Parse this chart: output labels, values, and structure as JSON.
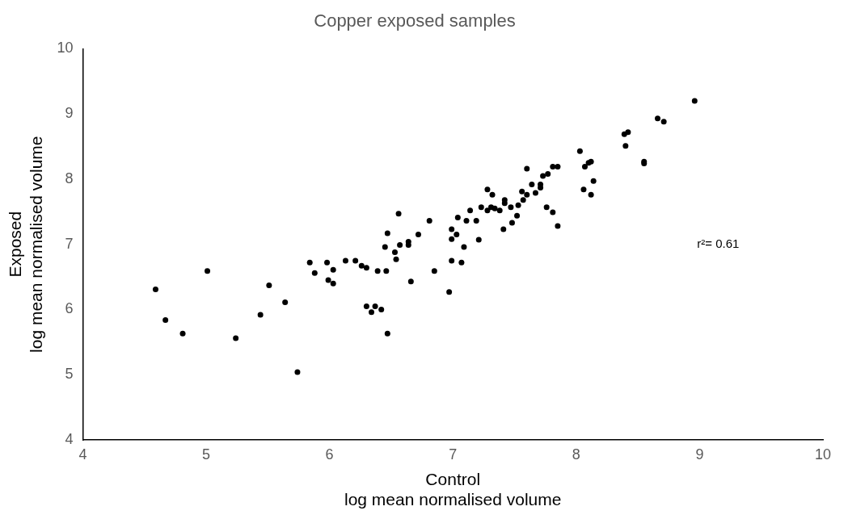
{
  "chart_data": {
    "type": "scatter",
    "title": "Copper exposed samples",
    "xlabel": "Control\nlog mean normalised volume",
    "ylabel": "Exposed\nlog mean normalised volume",
    "annotations": [
      "r²= 0.61"
    ],
    "x": [
      4.59,
      4.67,
      4.81,
      5.01,
      5.24,
      5.44,
      5.51,
      5.64,
      5.74,
      5.84,
      5.88,
      5.98,
      6.03,
      5.99,
      6.03,
      6.13,
      6.21,
      6.26,
      6.3,
      6.39,
      6.46,
      6.3,
      6.34,
      6.37,
      6.42,
      6.47,
      6.45,
      6.47,
      6.56,
      6.57,
      6.53,
      6.54,
      6.64,
      6.64,
      6.66,
      6.72,
      6.81,
      6.85,
      6.97,
      6.99,
      6.99,
      6.99,
      7.03,
      7.04,
      7.07,
      7.09,
      7.11,
      7.14,
      7.19,
      7.21,
      7.23,
      7.28,
      7.28,
      7.32,
      7.31,
      7.34,
      7.38,
      7.41,
      7.42,
      7.42,
      7.47,
      7.48,
      7.52,
      7.53,
      7.56,
      7.57,
      7.6,
      7.6,
      7.64,
      7.67,
      7.71,
      7.71,
      7.73,
      7.76,
      7.77,
      7.81,
      7.81,
      7.85,
      7.85,
      8.03,
      8.06,
      8.07,
      8.1,
      8.12,
      8.12,
      8.14,
      8.39,
      8.42,
      8.4,
      8.55,
      8.55,
      8.66,
      8.71,
      8.96
    ],
    "series": [
      {
        "color": "#000000",
        "values": [
          6.31,
          5.84,
          5.63,
          6.59,
          5.56,
          5.92,
          6.37,
          6.11,
          5.04,
          6.72,
          6.56,
          6.72,
          6.61,
          6.45,
          6.4,
          6.75,
          6.75,
          6.67,
          6.64,
          6.59,
          6.59,
          6.05,
          5.96,
          6.05,
          6.0,
          5.63,
          6.96,
          7.17,
          7.47,
          6.99,
          6.88,
          6.77,
          7.04,
          6.99,
          6.43,
          7.15,
          7.36,
          6.59,
          6.27,
          7.23,
          7.08,
          6.75,
          7.15,
          7.41,
          6.72,
          6.96,
          7.36,
          7.52,
          7.36,
          7.07,
          7.57,
          7.84,
          7.52,
          7.76,
          7.57,
          7.55,
          7.52,
          7.23,
          7.68,
          7.63,
          7.57,
          7.33,
          7.44,
          7.6,
          7.81,
          7.68,
          7.76,
          8.16,
          7.92,
          7.79,
          7.87,
          7.92,
          8.05,
          7.57,
          8.08,
          7.49,
          8.19,
          7.28,
          8.19,
          8.43,
          7.84,
          8.19,
          8.25,
          8.27,
          7.76,
          7.97,
          8.69,
          8.72,
          8.51,
          8.27,
          8.24,
          8.93,
          8.88,
          9.2
        ]
      }
    ],
    "xlim": [
      4,
      10
    ],
    "ylim": [
      4,
      10
    ],
    "xticks": [
      4,
      5,
      6,
      7,
      8,
      9,
      10
    ],
    "yticks": [
      4,
      5,
      6,
      7,
      8,
      9,
      10
    ],
    "grid": false,
    "legend": false,
    "marker": "circle"
  }
}
